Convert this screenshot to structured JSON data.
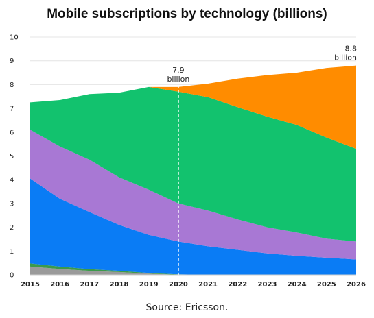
{
  "chart_data": {
    "type": "area",
    "stacked": true,
    "title": "Mobile subscriptions by technology (billions)",
    "source": "Source: Ericsson.",
    "x": [
      "2015",
      "2016",
      "2017",
      "2018",
      "2019",
      "2020",
      "2021",
      "2022",
      "2023",
      "2024",
      "2025",
      "2026"
    ],
    "ylim": [
      0,
      10
    ],
    "yticks": [
      "0",
      "1",
      "2",
      "3",
      "4",
      "5",
      "6",
      "7",
      "8",
      "9",
      "10"
    ],
    "grid": true,
    "legend": "none",
    "series": [
      {
        "color": "#9a9a9a",
        "values": [
          0.35,
          0.25,
          0.17,
          0.12,
          0.05,
          0,
          0,
          0,
          0,
          0,
          0,
          0
        ]
      },
      {
        "color": "#3b9a4a",
        "values": [
          0.13,
          0.1,
          0.07,
          0.05,
          0.03,
          0.02,
          0,
          0,
          0,
          0,
          0,
          0
        ]
      },
      {
        "color": "#0a7cf5",
        "values": [
          3.57,
          2.85,
          2.4,
          1.93,
          1.6,
          1.38,
          1.2,
          1.05,
          0.9,
          0.8,
          0.72,
          0.65
        ]
      },
      {
        "color": "#a878d4",
        "values": [
          2.05,
          2.2,
          2.2,
          2.0,
          1.9,
          1.6,
          1.5,
          1.28,
          1.1,
          0.98,
          0.8,
          0.75
        ]
      },
      {
        "color": "#12c26e",
        "values": [
          1.15,
          1.95,
          2.76,
          3.56,
          4.32,
          4.7,
          4.77,
          4.72,
          4.65,
          4.52,
          4.25,
          3.9
        ]
      },
      {
        "color": "#ff8c00",
        "values": [
          0,
          0,
          0,
          0,
          0,
          0.2,
          0.57,
          1.2,
          1.75,
          2.2,
          2.93,
          3.5
        ]
      }
    ],
    "annotations": [
      {
        "x": "2020",
        "y": 7.9,
        "line1": "7.9",
        "line2": "billion",
        "dashed_line": true
      },
      {
        "x": "2026",
        "y": 8.8,
        "line1": "8.8",
        "line2": "billion"
      }
    ]
  }
}
